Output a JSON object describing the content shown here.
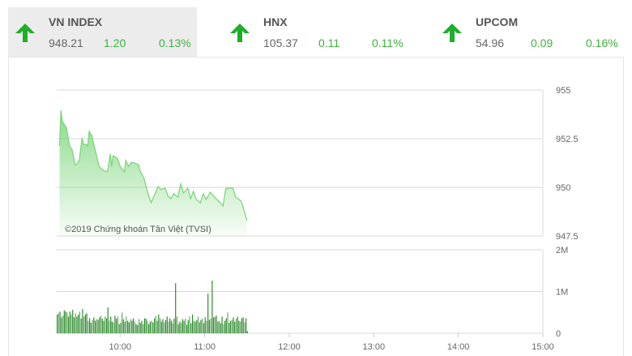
{
  "tickers": [
    {
      "name": "VN INDEX",
      "value": "948.21",
      "change": "1.20",
      "percent": "0.13%",
      "direction": "up",
      "icon": "arrow-up-icon"
    },
    {
      "name": "HNX",
      "value": "105.37",
      "change": "0.11",
      "percent": "0.11%",
      "direction": "up",
      "icon": "arrow-up-icon"
    },
    {
      "name": "UPCOM",
      "value": "54.96",
      "change": "0.09",
      "percent": "0.16%",
      "direction": "up",
      "icon": "arrow-up-icon"
    }
  ],
  "colors": {
    "up": "#1fae2a",
    "change_text": "#3cb43c",
    "area": "#7ed67e",
    "volume_bar": "#2e8b2e"
  },
  "watermark": "©2019 Chứng khoán Tân Việt (TVSI)",
  "chart_data": [
    {
      "type": "area",
      "ylim": [
        947.5,
        955
      ],
      "yticks": [
        "955",
        "952.5",
        "950",
        "947.5"
      ],
      "ytick_values": [
        955,
        952.5,
        950,
        947.5
      ],
      "x": [
        "09:17",
        "09:18",
        "09:19",
        "09:22",
        "09:24",
        "09:26",
        "09:28",
        "09:29",
        "09:31",
        "09:33",
        "09:34",
        "09:36",
        "09:37",
        "09:38",
        "09:40",
        "09:43",
        "09:45",
        "09:48",
        "09:51",
        "09:53",
        "09:54",
        "09:55",
        "09:58",
        "10:00",
        "10:03",
        "10:04",
        "10:06",
        "10:08",
        "10:10",
        "10:13",
        "10:14",
        "10:17",
        "10:20",
        "10:22",
        "10:24",
        "10:27",
        "10:29",
        "10:32",
        "10:34",
        "10:36",
        "10:38",
        "10:41",
        "10:43",
        "10:45",
        "10:48",
        "10:50",
        "10:52",
        "10:54",
        "10:57",
        "10:59",
        "11:01",
        "11:04",
        "11:06",
        "11:08",
        "11:11",
        "11:13",
        "11:15",
        "11:18",
        "11:20",
        "11:22",
        "11:26",
        "11:28",
        "11:30"
      ],
      "values": [
        952.13,
        953.96,
        953.38,
        953.04,
        952.13,
        951.92,
        951.17,
        951.17,
        951.38,
        952.54,
        952.21,
        952.21,
        952.13,
        952.88,
        952.63,
        951.71,
        951.08,
        950.88,
        950.79,
        951.71,
        951.08,
        951.63,
        951.5,
        951.08,
        950.79,
        951.38,
        951.08,
        951.29,
        951.25,
        951.17,
        950.88,
        950.46,
        949.63,
        949.21,
        949.54,
        950.04,
        949.88,
        949.96,
        949.54,
        949.42,
        949.67,
        949.5,
        950.17,
        949.71,
        949.96,
        949.42,
        949.79,
        949.38,
        949.21,
        949.67,
        949.38,
        949.75,
        949.58,
        949.42,
        949.21,
        949.04,
        949.96,
        949.96,
        949.96,
        949.5,
        949.29,
        948.79,
        948.29
      ],
      "grid": true
    },
    {
      "type": "bar",
      "start_time": "09:15",
      "interval_minutes": 1,
      "ylim": [
        0,
        2000000
      ],
      "yticks": [
        "2M",
        "1M",
        "0"
      ],
      "ytick_values": [
        2,
        1,
        0
      ],
      "unit": "M",
      "values": [
        0.45,
        0.48,
        0.52,
        0.38,
        0.42,
        0.55,
        0.52,
        0.5,
        0.4,
        0.52,
        0.45,
        0.56,
        0.38,
        0.48,
        0.4,
        0.45,
        0.52,
        0.35,
        0.58,
        0.4,
        0.45,
        0.48,
        0.3,
        0.36,
        0.25,
        0.32,
        0.38,
        0.3,
        0.34,
        0.32,
        0.38,
        0.42,
        0.35,
        0.3,
        0.4,
        0.36,
        0.62,
        0.3,
        0.4,
        0.28,
        0.26,
        0.42,
        0.35,
        0.4,
        0.22,
        0.25,
        0.5,
        0.34,
        0.28,
        0.4,
        0.3,
        0.26,
        0.34,
        0.3,
        0.36,
        0.28,
        0.22,
        0.2,
        0.34,
        0.25,
        0.3,
        0.22,
        0.36,
        0.35,
        0.3,
        0.22,
        0.28,
        0.3,
        0.26,
        0.36,
        0.42,
        0.3,
        0.45,
        0.36,
        0.28,
        0.34,
        0.26,
        0.32,
        0.4,
        0.28,
        0.36,
        0.3,
        0.24,
        0.35,
        1.2,
        0.4,
        0.22,
        0.28,
        0.25,
        0.34,
        0.3,
        0.35,
        0.2,
        0.32,
        0.4,
        0.24,
        0.45,
        0.3,
        0.28,
        0.32,
        0.4,
        0.26,
        0.32,
        0.35,
        0.24,
        0.38,
        0.3,
        0.95,
        0.32,
        0.35,
        1.26,
        0.38,
        0.4,
        0.42,
        0.28,
        0.3,
        0.24,
        0.4,
        0.22,
        0.3,
        0.36,
        0.5,
        0.25,
        0.3,
        0.32,
        0.38,
        0.28,
        0.35,
        0.4,
        0.3,
        0.28,
        0.36,
        0.38,
        0.26,
        0.36,
        0.05
      ],
      "grid": true
    }
  ],
  "xaxis": {
    "ticks": [
      "10:00",
      "11:00",
      "12:00",
      "13:00",
      "14:00",
      "15:00"
    ],
    "range": [
      "09:15",
      "15:00"
    ]
  }
}
